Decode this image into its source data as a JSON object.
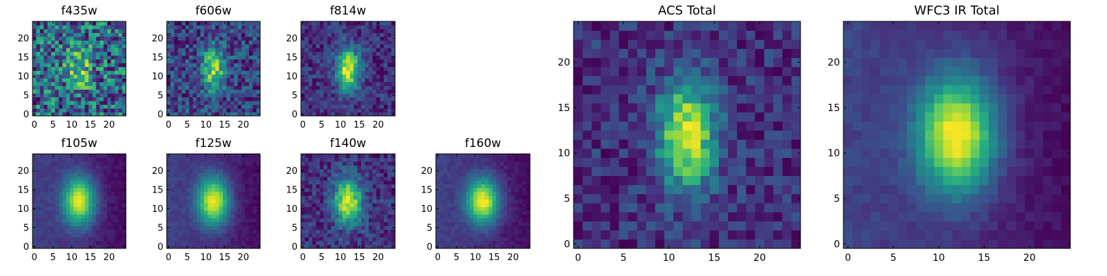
{
  "colormap": "viridis",
  "chart_data": [
    {
      "type": "heatmap",
      "title": "f435w",
      "xticks": [
        0,
        5,
        10,
        15,
        20
      ],
      "yticks": [
        0,
        5,
        10,
        15,
        20
      ],
      "xlim": [
        0,
        24
      ],
      "ylim": [
        0,
        24
      ],
      "grid_size": 25,
      "pattern": "noise",
      "peak": [
        12,
        12
      ],
      "sigma": [
        2.5,
        4
      ]
    },
    {
      "type": "heatmap",
      "title": "f606w",
      "xticks": [
        0,
        5,
        10,
        15,
        20
      ],
      "yticks": [
        0,
        5,
        10,
        15,
        20
      ],
      "xlim": [
        0,
        24
      ],
      "ylim": [
        0,
        24
      ],
      "grid_size": 25,
      "pattern": "faint-blob",
      "peak": [
        12,
        12
      ],
      "sigma": [
        2.2,
        4
      ]
    },
    {
      "type": "heatmap",
      "title": "f814w",
      "xticks": [
        0,
        5,
        10,
        15,
        20
      ],
      "yticks": [
        0,
        5,
        10,
        15,
        20
      ],
      "xlim": [
        0,
        24
      ],
      "ylim": [
        0,
        24
      ],
      "grid_size": 25,
      "pattern": "blob",
      "peak": [
        12,
        12
      ],
      "sigma": [
        2.2,
        4
      ]
    },
    {
      "type": "heatmap",
      "title": "f105w",
      "xticks": [
        0,
        5,
        10,
        15,
        20
      ],
      "yticks": [
        0,
        5,
        10,
        15,
        20
      ],
      "xlim": [
        0,
        24
      ],
      "ylim": [
        0,
        24
      ],
      "grid_size": 25,
      "pattern": "smooth-blob",
      "peak": [
        12,
        12
      ],
      "sigma": [
        3,
        4.5
      ]
    },
    {
      "type": "heatmap",
      "title": "f125w",
      "xticks": [
        0,
        5,
        10,
        15,
        20
      ],
      "yticks": [
        0,
        5,
        10,
        15,
        20
      ],
      "xlim": [
        0,
        24
      ],
      "ylim": [
        0,
        24
      ],
      "grid_size": 25,
      "pattern": "smooth-blob",
      "peak": [
        12,
        12
      ],
      "sigma": [
        3,
        4.5
      ]
    },
    {
      "type": "heatmap",
      "title": "f140w",
      "xticks": [
        0,
        5,
        10,
        15,
        20
      ],
      "yticks": [
        0,
        5,
        10,
        15,
        20
      ],
      "xlim": [
        0,
        24
      ],
      "ylim": [
        0,
        24
      ],
      "grid_size": 25,
      "pattern": "blob",
      "peak": [
        12,
        12
      ],
      "sigma": [
        2.6,
        4.2
      ]
    },
    {
      "type": "heatmap",
      "title": "f160w",
      "xticks": [
        0,
        5,
        10,
        15,
        20
      ],
      "yticks": [
        0,
        5,
        10,
        15,
        20
      ],
      "xlim": [
        0,
        24
      ],
      "ylim": [
        0,
        24
      ],
      "grid_size": 25,
      "pattern": "smooth-blob",
      "peak": [
        12,
        12
      ],
      "sigma": [
        3,
        4.2
      ]
    },
    {
      "type": "heatmap",
      "title": "ACS Total",
      "xticks": [
        0,
        5,
        10,
        15,
        20
      ],
      "yticks": [
        0,
        5,
        10,
        15,
        20
      ],
      "xlim": [
        0,
        24
      ],
      "ylim": [
        0,
        24
      ],
      "grid_size": 25,
      "pattern": "blob",
      "peak": [
        12,
        12
      ],
      "sigma": [
        2.2,
        4.2
      ]
    },
    {
      "type": "heatmap",
      "title": "WFC3 IR Total",
      "xticks": [
        0,
        5,
        10,
        15,
        20
      ],
      "yticks": [
        0,
        5,
        10,
        15,
        20
      ],
      "xlim": [
        0,
        24
      ],
      "ylim": [
        0,
        24
      ],
      "grid_size": 25,
      "pattern": "smooth-blob",
      "peak": [
        12,
        12
      ],
      "sigma": [
        3,
        4.5
      ]
    }
  ]
}
